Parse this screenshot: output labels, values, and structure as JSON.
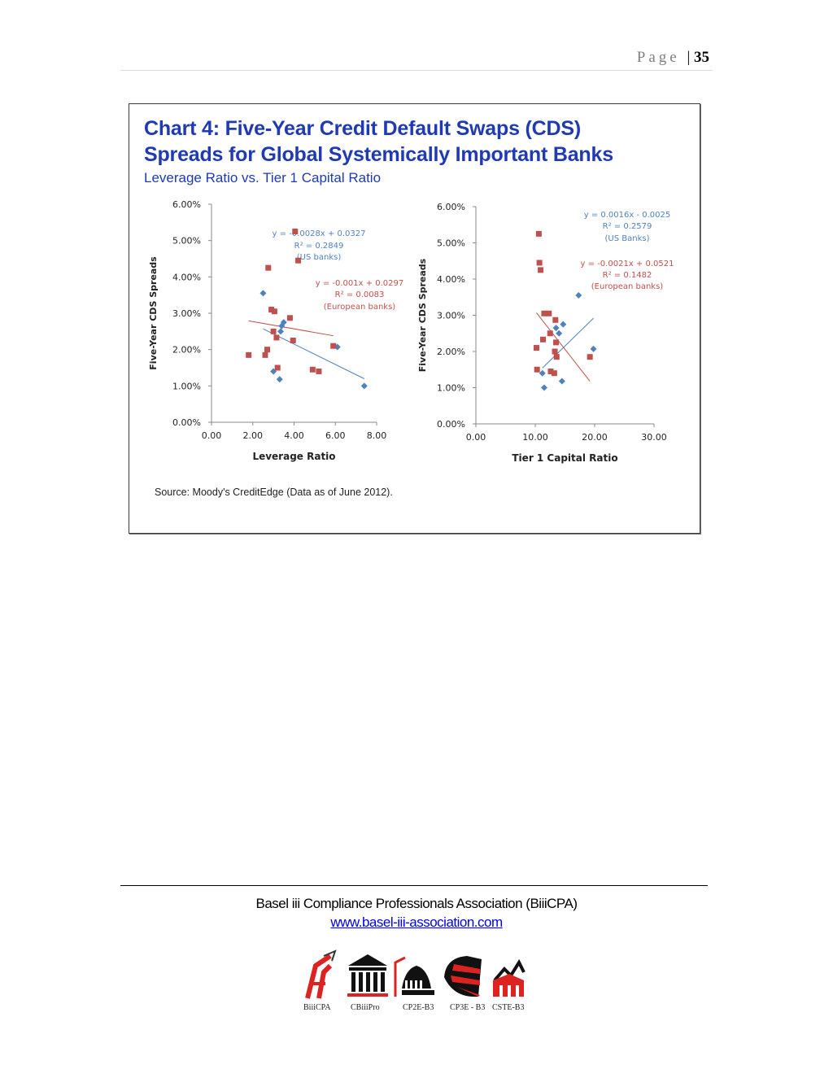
{
  "header": {
    "page_word": "Page",
    "page_number": "35"
  },
  "chart": {
    "title_line1": "Chart 4: Five-Year Credit Default Swaps (CDS)",
    "title_line2": "Spreads for Global Systemically Important Banks",
    "subtitle": "Leverage Ratio vs. Tier 1 Capital Ratio",
    "source": "Source: Moody's CreditEdge (Data as of June 2012)."
  },
  "chart_data": [
    {
      "type": "scatter",
      "xlabel": "Leverage Ratio",
      "ylabel": "Five-Year CDS Spreads",
      "xlim": [
        0,
        8
      ],
      "ylim": [
        0,
        0.06
      ],
      "x_ticks": [
        "0.00",
        "2.00",
        "4.00",
        "6.00",
        "8.00"
      ],
      "y_ticks": [
        "0.00%",
        "1.00%",
        "2.00%",
        "3.00%",
        "4.00%",
        "5.00%",
        "6.00%"
      ],
      "series": [
        {
          "color": "#4f81bd",
          "marker": "diamond",
          "points": [
            [
              2.5,
              0.0355
            ],
            [
              3.0,
              0.014
            ],
            [
              3.3,
              0.0118
            ],
            [
              3.35,
              0.025
            ],
            [
              3.4,
              0.0265
            ],
            [
              3.5,
              0.0275
            ],
            [
              6.1,
              0.0207
            ],
            [
              7.4,
              0.01
            ]
          ]
        },
        {
          "color": "#c0504d",
          "marker": "square",
          "points": [
            [
              1.8,
              0.0185
            ],
            [
              2.6,
              0.0185
            ],
            [
              2.7,
              0.02
            ],
            [
              2.75,
              0.0425
            ],
            [
              2.9,
              0.031
            ],
            [
              3.0,
              0.025
            ],
            [
              3.05,
              0.0305
            ],
            [
              3.15,
              0.0233
            ],
            [
              3.2,
              0.015
            ],
            [
              3.8,
              0.0287
            ],
            [
              3.95,
              0.0225
            ],
            [
              4.05,
              0.0525
            ],
            [
              4.2,
              0.0445
            ],
            [
              4.9,
              0.0145
            ],
            [
              5.2,
              0.014
            ],
            [
              5.9,
              0.021
            ]
          ]
        }
      ],
      "trendlines": [
        {
          "color": "#4f81bd",
          "equation": "y = -0.0028x + 0.0327",
          "r2": "R² = 0.2849",
          "label": "(US banks)",
          "x_range": [
            2.5,
            7.4
          ]
        },
        {
          "color": "#c0504d",
          "equation": "y = -0.001x + 0.0297",
          "r2": "R² = 0.0083",
          "label": "(European banks)",
          "x_range": [
            1.8,
            5.9
          ]
        }
      ]
    },
    {
      "type": "scatter",
      "xlabel": "Tier 1 Capital Ratio",
      "ylabel": "Five-Year CDS Spreads",
      "xlim": [
        0,
        30
      ],
      "ylim": [
        0,
        0.06
      ],
      "x_ticks": [
        "0.00",
        "10.00",
        "20.00",
        "30.00"
      ],
      "y_ticks": [
        "0.00%",
        "1.00%",
        "2.00%",
        "3.00%",
        "4.00%",
        "5.00%",
        "6.00%"
      ],
      "series": [
        {
          "color": "#4f81bd",
          "marker": "diamond",
          "points": [
            [
              11.2,
              0.014
            ],
            [
              11.5,
              0.01
            ],
            [
              13.5,
              0.0265
            ],
            [
              14.0,
              0.025
            ],
            [
              14.5,
              0.0118
            ],
            [
              14.7,
              0.0275
            ],
            [
              17.3,
              0.0355
            ],
            [
              19.8,
              0.0207
            ]
          ]
        },
        {
          "color": "#c0504d",
          "marker": "square",
          "points": [
            [
              10.2,
              0.021
            ],
            [
              10.3,
              0.015
            ],
            [
              10.6,
              0.0525
            ],
            [
              10.7,
              0.0445
            ],
            [
              10.9,
              0.0425
            ],
            [
              11.3,
              0.0233
            ],
            [
              11.5,
              0.0305
            ],
            [
              12.3,
              0.0305
            ],
            [
              12.5,
              0.025
            ],
            [
              12.6,
              0.0145
            ],
            [
              13.2,
              0.014
            ],
            [
              13.3,
              0.02
            ],
            [
              13.4,
              0.0287
            ],
            [
              13.5,
              0.0225
            ],
            [
              13.6,
              0.0185
            ],
            [
              19.2,
              0.0185
            ]
          ]
        }
      ],
      "trendlines": [
        {
          "color": "#4f81bd",
          "equation": "y = 0.0016x - 0.0025",
          "r2": "R² = 0.2579",
          "label": "(US Banks)",
          "x_range": [
            11.2,
            19.8
          ]
        },
        {
          "color": "#c0504d",
          "equation": "y = -0.0021x + 0.0521",
          "r2": "R² = 0.1482",
          "label": "(European banks)",
          "x_range": [
            10.2,
            19.2
          ]
        }
      ]
    }
  ],
  "footer": {
    "organization": "Basel iii Compliance Professionals Association (BiiiCPA)",
    "url": "www.basel-iii-association.com",
    "logos": [
      "BiiiCPA",
      "CBiiiPro",
      "CP2E-B3",
      "CP3E - B3",
      "CSTE-B3"
    ]
  }
}
